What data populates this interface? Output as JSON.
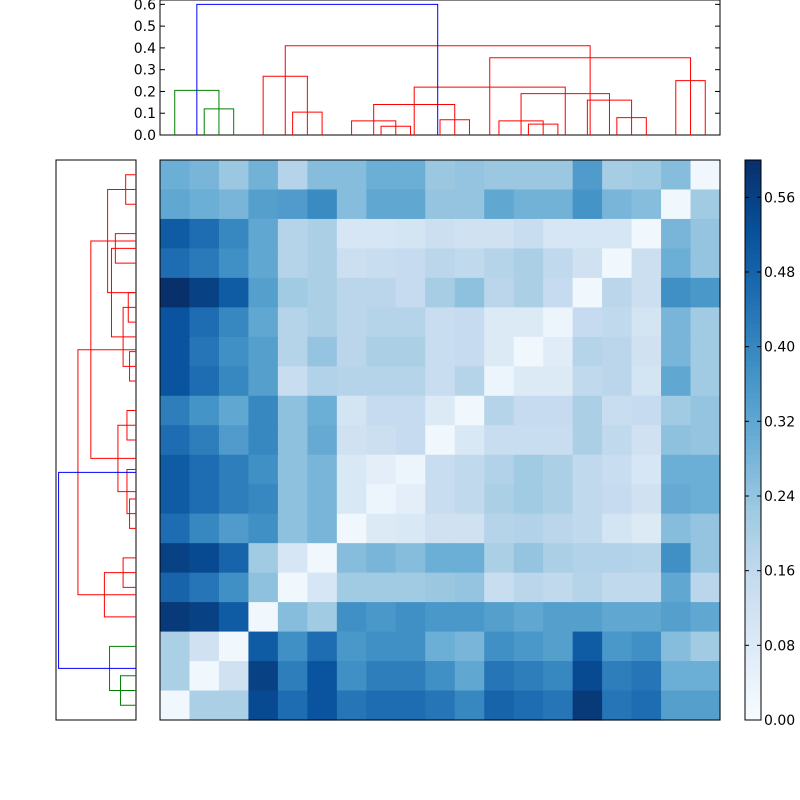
{
  "chart_data": [
    {
      "type": "dendrogram",
      "orientation": "top",
      "ylim": [
        0,
        0.62
      ],
      "yticks": [
        "0.0",
        "0.1",
        "0.2",
        "0.3",
        "0.4",
        "0.5",
        "0.6"
      ],
      "ytick_values": [
        0,
        0.1,
        0.2,
        0.3,
        0.4,
        0.5,
        0.6
      ],
      "leaf_count": 19,
      "links": [
        {
          "l": 1,
          "r": 2,
          "h": 0.12,
          "color": "green"
        },
        {
          "l": 0,
          "r": 1.5,
          "h": 0.205,
          "color": "green"
        },
        {
          "l": 7,
          "r": 8,
          "h": 0.04,
          "color": "red"
        },
        {
          "l": 6,
          "r": 7.5,
          "h": 0.065,
          "color": "red"
        },
        {
          "l": 9,
          "r": 10,
          "h": 0.07,
          "color": "red"
        },
        {
          "l": 6.75,
          "r": 9.5,
          "h": 0.14,
          "color": "red"
        },
        {
          "l": 12,
          "r": 13,
          "h": 0.05,
          "color": "red"
        },
        {
          "l": 11,
          "r": 12.5,
          "h": 0.065,
          "color": "red"
        },
        {
          "l": 15,
          "r": 16,
          "h": 0.08,
          "color": "red"
        },
        {
          "l": 14,
          "r": 15.5,
          "h": 0.16,
          "color": "red"
        },
        {
          "l": 11.75,
          "r": 14.75,
          "h": 0.19,
          "color": "red"
        },
        {
          "l": 8.125,
          "r": 13.25,
          "h": 0.22,
          "color": "red"
        },
        {
          "l": 17,
          "r": 18,
          "h": 0.25,
          "color": "red"
        },
        {
          "l": 10.6875,
          "r": 17.5,
          "h": 0.355,
          "color": "red"
        },
        {
          "l": 4,
          "r": 5,
          "h": 0.105,
          "color": "red"
        },
        {
          "l": 3,
          "r": 4.5,
          "h": 0.27,
          "color": "red"
        },
        {
          "l": 3.75,
          "r": 14.09375,
          "h": 0.41,
          "color": "red"
        },
        {
          "l": 0.75,
          "r": 8.921875,
          "h": 0.6,
          "color": "blue"
        }
      ]
    },
    {
      "type": "dendrogram",
      "orientation": "left",
      "leaf_count": 19,
      "links": [
        {
          "l": 0,
          "r": 1,
          "h": 0.12,
          "color": "green"
        },
        {
          "l": 0.5,
          "r": 2,
          "h": 0.205,
          "color": "green"
        },
        {
          "l": 4,
          "r": 5,
          "h": 0.1,
          "color": "red"
        },
        {
          "l": 3,
          "r": 4.5,
          "h": 0.245,
          "color": "red"
        },
        {
          "l": 6,
          "r": 7,
          "h": 0.05,
          "color": "red"
        },
        {
          "l": 6.5,
          "r": 8,
          "h": 0.07,
          "color": "red"
        },
        {
          "l": 9,
          "r": 10,
          "h": 0.07,
          "color": "red"
        },
        {
          "l": 7.25,
          "r": 9.5,
          "h": 0.14,
          "color": "red"
        },
        {
          "l": 11,
          "r": 12,
          "h": 0.05,
          "color": "red"
        },
        {
          "l": 13,
          "r": 14,
          "h": 0.06,
          "color": "red"
        },
        {
          "l": 11.5,
          "r": 13.5,
          "h": 0.1,
          "color": "red"
        },
        {
          "l": 15,
          "r": 16,
          "h": 0.16,
          "color": "red"
        },
        {
          "l": 12.5,
          "r": 15.5,
          "h": 0.19,
          "color": "red"
        },
        {
          "l": 17,
          "r": 18,
          "h": 0.08,
          "color": "red"
        },
        {
          "l": 14,
          "r": 17.5,
          "h": 0.22,
          "color": "red"
        },
        {
          "l": 8.375,
          "r": 15.75,
          "h": 0.35,
          "color": "red"
        },
        {
          "l": 3.75,
          "r": 12.06,
          "h": 0.45,
          "color": "red"
        },
        {
          "l": 1.25,
          "r": 7.9,
          "h": 0.6,
          "color": "blue"
        }
      ]
    },
    {
      "type": "heatmap",
      "rows": 19,
      "cols": 19,
      "values": [
        [
          0.3,
          0.28,
          0.23,
          0.29,
          0.18,
          0.26,
          0.26,
          0.3,
          0.3,
          0.23,
          0.24,
          0.23,
          0.23,
          0.23,
          0.35,
          0.21,
          0.22,
          0.26,
          0.02
        ],
        [
          0.32,
          0.3,
          0.28,
          0.34,
          0.35,
          0.39,
          0.26,
          0.32,
          0.32,
          0.24,
          0.24,
          0.32,
          0.29,
          0.29,
          0.37,
          0.28,
          0.26,
          0.02,
          0.22
        ],
        [
          0.5,
          0.46,
          0.4,
          0.32,
          0.18,
          0.2,
          0.1,
          0.1,
          0.11,
          0.13,
          0.12,
          0.12,
          0.14,
          0.1,
          0.1,
          0.1,
          0.02,
          0.28,
          0.24
        ],
        [
          0.46,
          0.43,
          0.38,
          0.32,
          0.18,
          0.2,
          0.13,
          0.14,
          0.15,
          0.17,
          0.16,
          0.18,
          0.2,
          0.16,
          0.12,
          0.02,
          0.13,
          0.3,
          0.24
        ],
        [
          0.6,
          0.56,
          0.5,
          0.34,
          0.22,
          0.2,
          0.17,
          0.17,
          0.15,
          0.21,
          0.25,
          0.17,
          0.2,
          0.15,
          0.02,
          0.17,
          0.13,
          0.38,
          0.36
        ],
        [
          0.52,
          0.46,
          0.4,
          0.32,
          0.18,
          0.2,
          0.17,
          0.18,
          0.18,
          0.14,
          0.15,
          0.08,
          0.08,
          0.03,
          0.15,
          0.16,
          0.11,
          0.28,
          0.22
        ],
        [
          0.52,
          0.44,
          0.38,
          0.34,
          0.18,
          0.24,
          0.17,
          0.2,
          0.2,
          0.14,
          0.15,
          0.08,
          0.02,
          0.07,
          0.18,
          0.17,
          0.12,
          0.28,
          0.22
        ],
        [
          0.52,
          0.46,
          0.4,
          0.34,
          0.14,
          0.19,
          0.18,
          0.18,
          0.18,
          0.14,
          0.18,
          0.03,
          0.08,
          0.08,
          0.16,
          0.17,
          0.11,
          0.32,
          0.22
        ],
        [
          0.42,
          0.37,
          0.32,
          0.4,
          0.25,
          0.3,
          0.11,
          0.15,
          0.15,
          0.08,
          0.02,
          0.18,
          0.15,
          0.15,
          0.2,
          0.14,
          0.15,
          0.22,
          0.24
        ],
        [
          0.46,
          0.42,
          0.35,
          0.4,
          0.25,
          0.31,
          0.12,
          0.13,
          0.15,
          0.02,
          0.09,
          0.14,
          0.14,
          0.14,
          0.2,
          0.16,
          0.12,
          0.25,
          0.24
        ],
        [
          0.5,
          0.46,
          0.42,
          0.38,
          0.25,
          0.28,
          0.09,
          0.06,
          0.03,
          0.14,
          0.16,
          0.19,
          0.22,
          0.2,
          0.16,
          0.14,
          0.1,
          0.3,
          0.3
        ],
        [
          0.5,
          0.46,
          0.42,
          0.4,
          0.25,
          0.28,
          0.09,
          0.03,
          0.06,
          0.14,
          0.16,
          0.2,
          0.22,
          0.2,
          0.16,
          0.15,
          0.12,
          0.31,
          0.3
        ],
        [
          0.46,
          0.4,
          0.35,
          0.38,
          0.25,
          0.28,
          0.02,
          0.08,
          0.09,
          0.12,
          0.12,
          0.18,
          0.19,
          0.17,
          0.16,
          0.11,
          0.08,
          0.26,
          0.24
        ],
        [
          0.56,
          0.54,
          0.48,
          0.22,
          0.1,
          0.02,
          0.26,
          0.28,
          0.26,
          0.3,
          0.3,
          0.2,
          0.24,
          0.2,
          0.19,
          0.19,
          0.18,
          0.38,
          0.24
        ],
        [
          0.48,
          0.44,
          0.38,
          0.25,
          0.02,
          0.1,
          0.22,
          0.22,
          0.22,
          0.23,
          0.24,
          0.14,
          0.17,
          0.16,
          0.18,
          0.16,
          0.16,
          0.32,
          0.17
        ],
        [
          0.58,
          0.56,
          0.5,
          0.02,
          0.26,
          0.22,
          0.38,
          0.36,
          0.38,
          0.36,
          0.36,
          0.34,
          0.32,
          0.34,
          0.34,
          0.32,
          0.32,
          0.34,
          0.32
        ],
        [
          0.2,
          0.12,
          0.02,
          0.5,
          0.38,
          0.46,
          0.36,
          0.38,
          0.38,
          0.3,
          0.28,
          0.38,
          0.36,
          0.34,
          0.5,
          0.36,
          0.38,
          0.26,
          0.22
        ],
        [
          0.2,
          0.02,
          0.12,
          0.56,
          0.42,
          0.52,
          0.38,
          0.42,
          0.42,
          0.38,
          0.32,
          0.44,
          0.42,
          0.4,
          0.54,
          0.42,
          0.44,
          0.3,
          0.3
        ],
        [
          0.02,
          0.2,
          0.2,
          0.54,
          0.46,
          0.52,
          0.44,
          0.46,
          0.46,
          0.44,
          0.4,
          0.48,
          0.46,
          0.44,
          0.58,
          0.44,
          0.46,
          0.34,
          0.34
        ]
      ],
      "colormap": "Blues",
      "vmin": 0.0,
      "vmax": 0.6
    },
    {
      "type": "colorbar",
      "colormap": "Blues",
      "ticks": [
        "0.00",
        "0.08",
        "0.16",
        "0.24",
        "0.32",
        "0.40",
        "0.48",
        "0.56"
      ],
      "tick_values": [
        0,
        0.08,
        0.16,
        0.24,
        0.32,
        0.4,
        0.48,
        0.56
      ],
      "vmin": 0.0,
      "vmax": 0.6
    }
  ],
  "colors": {
    "green": "#008000",
    "red": "#ff0000",
    "blue": "#0000ff",
    "axis": "#000000"
  }
}
